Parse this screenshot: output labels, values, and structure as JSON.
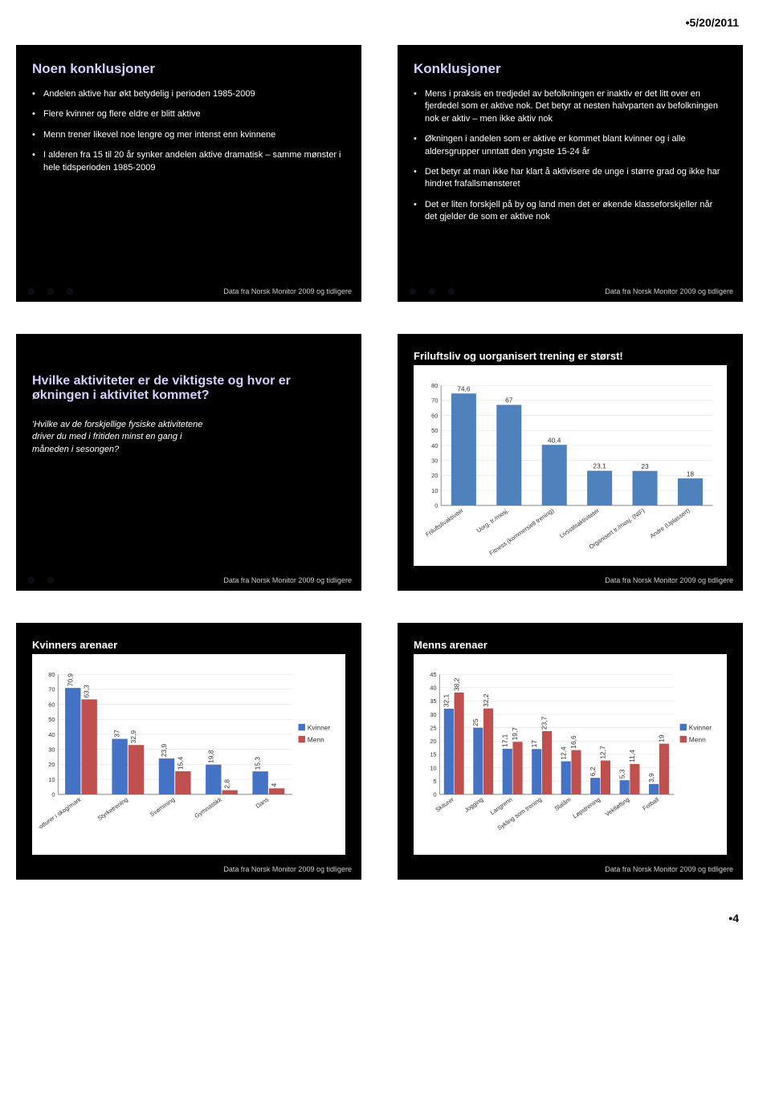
{
  "date": "5/20/2011",
  "page_num": "4",
  "footer_text": "Data fra Norsk Monitor 2009 og tidligere",
  "colors": {
    "kvinner": "#4472c4",
    "menn": "#c0504d",
    "single_bar": "#4f81bd",
    "grid": "#d9d9d9",
    "title_lilac": "#d4d0ff"
  },
  "slides": {
    "s1": {
      "title": "Noen konklusjoner",
      "bullets": [
        "Andelen aktive har økt betydelig i perioden 1985-2009",
        "Flere kvinner og flere eldre er blitt aktive",
        "Menn trener likevel noe lengre og mer intenst enn kvinnene",
        "I alderen fra 15 til 20 år synker andelen aktive dramatisk – samme mønster i hele tidsperioden 1985-2009"
      ]
    },
    "s2": {
      "title": "Konklusjoner",
      "bullets": [
        "Mens i praksis en tredjedel av befolkningen er inaktiv er det litt over en fjerdedel som er aktive nok. Det betyr at nesten halvparten av befolkningen nok er aktiv – men ikke aktiv nok",
        "Økningen i andelen som er aktive er kommet blant kvinner og i alle aldersgrupper unntatt den yngste 15-24 år",
        "Det betyr at man ikke har klart å aktivisere de unge i større grad og ikke har hindret frafallsmønsteret",
        "Det er liten forskjell på by og land men det er økende klasseforskjeller når det gjelder de som er aktive nok"
      ]
    },
    "s3": {
      "title": "Hvilke aktiviteter er de viktigste og hvor er økningen i aktivitet kommet?",
      "question": "'Hvilke av de forskjellige fysiske aktivitetene driver du med i fritiden minst en gang i måneden i sesongen?"
    },
    "s4": {
      "title": "Friluftsliv og uorganisert trening er størst!",
      "chart": {
        "type": "bar",
        "ylim": [
          0,
          80
        ],
        "ytick_step": 10,
        "categories": [
          "Friluftslivaktiviter",
          "Uorg. tr./mosj.",
          "Fitness (kommersiell trening)",
          "Livsstilsaktiviteter",
          "Organisert tr./mosj. (NIF)",
          "Andre (Uplassert)"
        ],
        "values": [
          74.6,
          67,
          40.4,
          23.1,
          23,
          18
        ],
        "bar_color": "#4f81bd",
        "value_fontsize": 9
      }
    },
    "s5": {
      "title": "Kvinners arenaer",
      "chart": {
        "type": "grouped-bar",
        "ylim": [
          0,
          80
        ],
        "ytick_step": 10,
        "categories": [
          "Fotturer i skog/mark",
          "Styrketrening",
          "Svømming",
          "Gymnastikk",
          "Dans"
        ],
        "series": [
          {
            "name": "Kvinner",
            "color": "#4472c4",
            "values": [
              70.9,
              37,
              23.9,
              19.8,
              15.3
            ]
          },
          {
            "name": "Menn",
            "color": "#c0504d",
            "values": [
              63.3,
              32.9,
              15.4,
              2.8,
              4
            ]
          }
        ],
        "value_fontsize": 8
      }
    },
    "s6": {
      "title": "Menns arenaer",
      "chart": {
        "type": "grouped-bar",
        "ylim": [
          0,
          45
        ],
        "ytick_step": 5,
        "categories": [
          "Skiturer",
          "Jogging",
          "Langrenn",
          "Sykling som trening",
          "Slalåm",
          "Løpstrening",
          "Vektløfting",
          "Fotball"
        ],
        "series": [
          {
            "name": "Kvinner",
            "color": "#4472c4",
            "values": [
              32.1,
              25,
              17.1,
              17,
              12.4,
              6.2,
              5.3,
              3.9
            ]
          },
          {
            "name": "Menn",
            "color": "#c0504d",
            "values": [
              38.2,
              32.2,
              19.7,
              23.7,
              16.6,
              12.7,
              11.4,
              19
            ]
          }
        ],
        "value_fontsize": 7
      }
    }
  }
}
